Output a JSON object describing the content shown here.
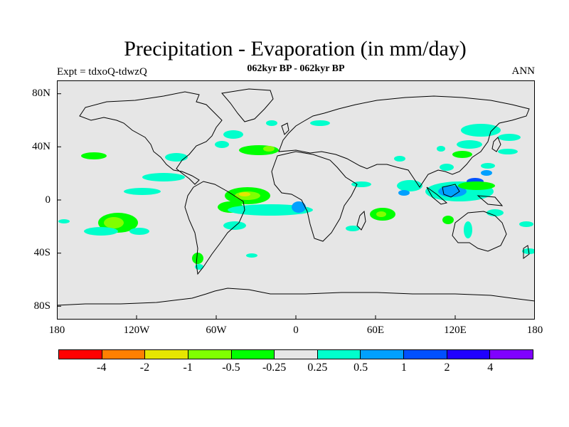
{
  "title": "Precipitation - Evaporation (in mm/day)",
  "subtitle": "062kyr BP - 062kyr BP",
  "experiment": "Expt = tdxoQ-tdwzQ",
  "season": "ANN",
  "lat_labels": [
    "80N",
    "40N",
    "0",
    "40S",
    "80S"
  ],
  "lon_labels": [
    "180",
    "120W",
    "60W",
    "0",
    "60E",
    "120E",
    "180"
  ],
  "colorbar": {
    "colors": [
      "#ff0000",
      "#ff8000",
      "#e6e600",
      "#80ff00",
      "#00ff00",
      "#e6e6e6",
      "#00ffcc",
      "#00a0ff",
      "#0050ff",
      "#2000ff",
      "#8000ff"
    ],
    "labels": [
      "-4",
      "-2",
      "-1",
      "-0.5",
      "-0.25",
      "0.25",
      "0.5",
      "1",
      "2",
      "4"
    ]
  },
  "colors": {
    "background": "#e6e6e6",
    "coast": "#000000"
  },
  "map": {
    "projection": "equirectangular",
    "lon_range": [
      -180,
      180
    ],
    "lat_range": [
      -90,
      90
    ]
  }
}
